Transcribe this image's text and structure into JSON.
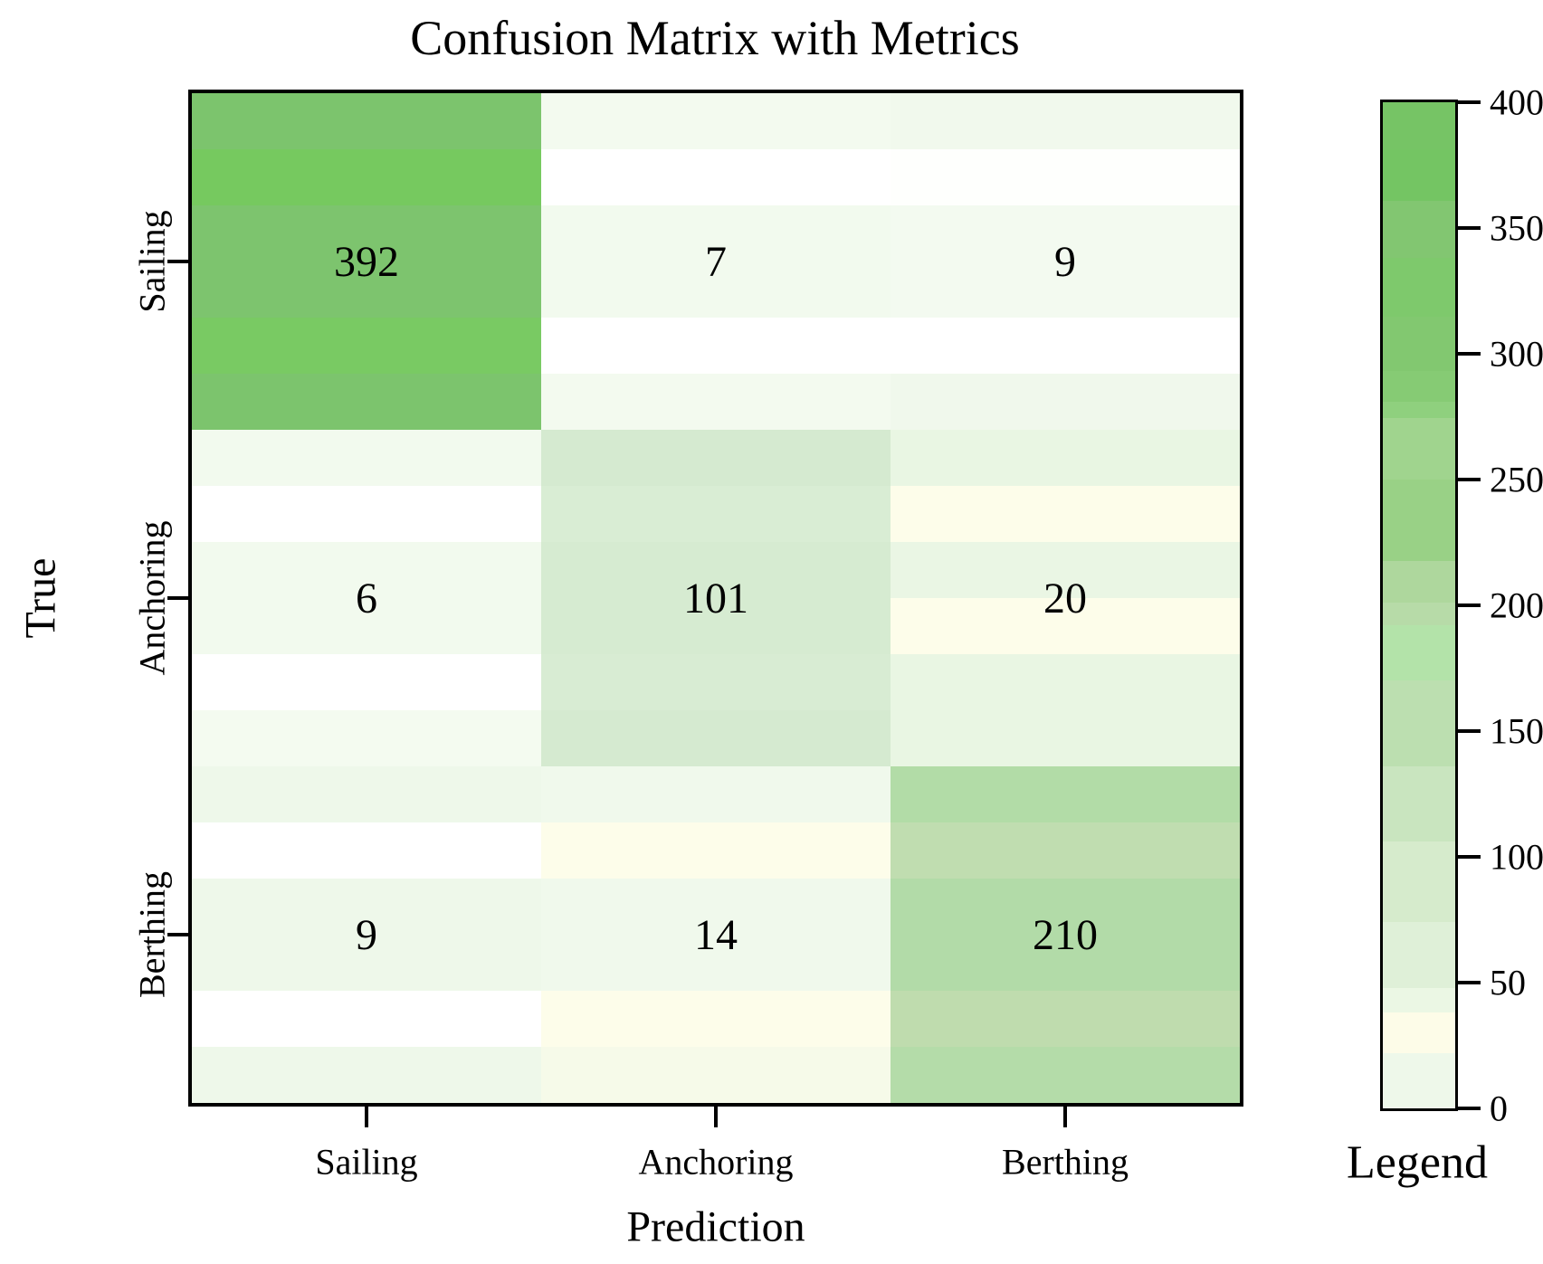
{
  "title": "Confusion Matrix with Metrics",
  "chart_data": {
    "type": "heatmap",
    "title": "Confusion Matrix with Metrics",
    "xlabel": "Prediction",
    "ylabel": "True",
    "x_categories": [
      "Sailing",
      "Anchoring",
      "Berthing"
    ],
    "y_categories": [
      "Sailing",
      "Anchoring",
      "Berthing"
    ],
    "matrix": [
      [
        392,
        7,
        9
      ],
      [
        6,
        101,
        20
      ],
      [
        9,
        14,
        210
      ]
    ],
    "vmin": 0,
    "vmax": 400,
    "grid": false,
    "colorbar": {
      "label": "Legend",
      "ticks": [
        400,
        350,
        300,
        250,
        200,
        150,
        100,
        50,
        0
      ],
      "position": "right"
    }
  },
  "style": {
    "text_color": "#000000",
    "axis_color": "#000000",
    "background": "#ffffff",
    "cell_base_colors": [
      [
        "#7bc668",
        "#f4fbf0",
        "#f2f9ee"
      ],
      [
        "#f3faef",
        "#d6ebd1",
        "#ecf7e6"
      ],
      [
        "#eef8ea",
        "#f2f9ee",
        "#b4dca9"
      ]
    ],
    "cell_band_colors": [
      [
        [
          "#7cc46d",
          "#76c95f",
          "#7dc46e",
          "#7dc46e",
          "#79ca63",
          "#7cc46d"
        ],
        [
          "#f3faef",
          "#ffffff",
          "#f2faee",
          "#f2faee",
          "#ffffff",
          "#f3faef"
        ],
        [
          "#f1f9ed",
          "#fefffd",
          "#f3faf0",
          "#f3faf0",
          "#ffffff",
          "#f0f8ec"
        ]
      ],
      [
        [
          "#f2faee",
          "#ffffff",
          "#f2faee",
          "#f2faee",
          "#ffffff",
          "#f4fbf0"
        ],
        [
          "#d5ead0",
          "#d9edd4",
          "#d6ebd1",
          "#d6ebd1",
          "#d8ecd3",
          "#d5ead0"
        ],
        [
          "#e9f6e3",
          "#fdfdea",
          "#eaf6e4",
          "#fdfdea",
          "#e9f6e3",
          "#e9f6e3"
        ]
      ],
      [
        [
          "#eef8ea",
          "#ffffff",
          "#eef8ea",
          "#eef8ea",
          "#ffffff",
          "#eef8ea"
        ],
        [
          "#f0f9ec",
          "#fdfdea",
          "#f0f9ec",
          "#f0f9ec",
          "#fdfdea",
          "#f6fae9"
        ],
        [
          "#b2dca7",
          "#c0ddb0",
          "#b2dba8",
          "#b2dba8",
          "#bfdcae",
          "#b4dca9"
        ]
      ]
    ],
    "colorbar_stops": [
      {
        "p": 0.0,
        "c": "#76c465"
      },
      {
        "p": 0.047,
        "c": "#74c563"
      },
      {
        "p": 0.098,
        "c": "#82c671"
      },
      {
        "p": 0.155,
        "c": "#7ec96c"
      },
      {
        "p": 0.213,
        "c": "#82c870"
      },
      {
        "p": 0.267,
        "c": "#86cb74"
      },
      {
        "p": 0.298,
        "c": "#8fd07e"
      },
      {
        "p": 0.314,
        "c": "#a0d48e"
      },
      {
        "p": 0.375,
        "c": "#99d186"
      },
      {
        "p": 0.456,
        "c": "#aed79d"
      },
      {
        "p": 0.497,
        "c": "#b7dba8"
      },
      {
        "p": 0.52,
        "c": "#b3e3a9"
      },
      {
        "p": 0.575,
        "c": "#bcdfb0"
      },
      {
        "p": 0.66,
        "c": "#c9e5bf"
      },
      {
        "p": 0.735,
        "c": "#d6ebcc"
      },
      {
        "p": 0.815,
        "c": "#dff0d8"
      },
      {
        "p": 0.88,
        "c": "#ebf7e4"
      },
      {
        "p": 0.905,
        "c": "#fdfce8"
      },
      {
        "p": 0.945,
        "c": "#eef8ea"
      }
    ]
  }
}
